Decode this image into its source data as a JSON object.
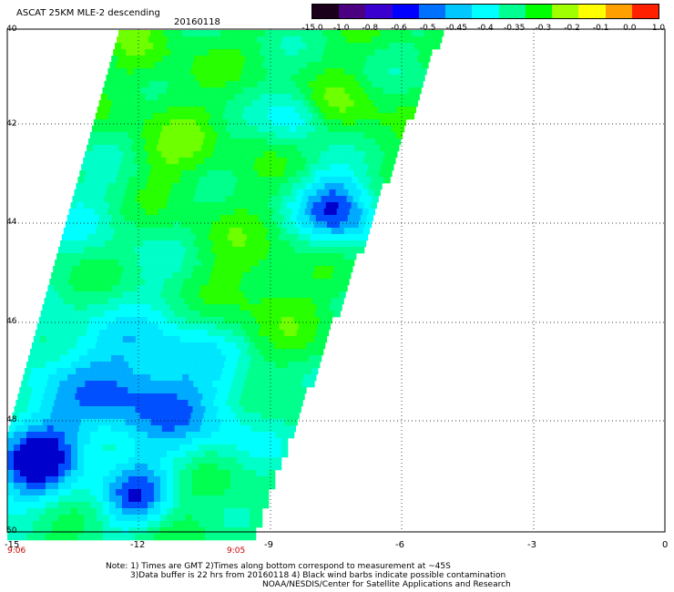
{
  "header": {
    "title": "ASCAT 25KM MLE-2 descending",
    "date": "20160118"
  },
  "colorbar": {
    "labels": [
      "-15.0",
      "-1.0",
      "-0.8",
      "-0.6",
      "-0.5",
      "-0.45",
      "-0.4",
      "-0.35",
      "-0.3",
      "-0.2",
      "-0.1",
      "0.0",
      "1.0"
    ],
    "colors": [
      "#1a001a",
      "#4b0082",
      "#3a00d0",
      "#0000ff",
      "#0070ff",
      "#00c8ff",
      "#00ffff",
      "#00ff90",
      "#00ff00",
      "#a0ff00",
      "#ffff00",
      "#ffa000",
      "#ff2000"
    ]
  },
  "map": {
    "lat_labels": [
      "40",
      "42",
      "44",
      "46",
      "48",
      "50"
    ],
    "lon_labels": [
      "-15",
      "-12",
      "-9",
      "-6",
      "-3",
      "0"
    ],
    "lon_range": [
      -15,
      0
    ],
    "lat_range": [
      40,
      50
    ],
    "times": {
      "left": "9:06",
      "right": "9:05"
    }
  },
  "notes": {
    "line1": "Note: 1) Times are GMT 2)Times along bottom correspond to measurement at ~45S",
    "line2": "3)Data buffer is 22 hrs from 20160118 4) Black wind barbs indicate possible contamination",
    "line3": "NOAA/NESDIS/Center for Satellite Applications and Research"
  }
}
